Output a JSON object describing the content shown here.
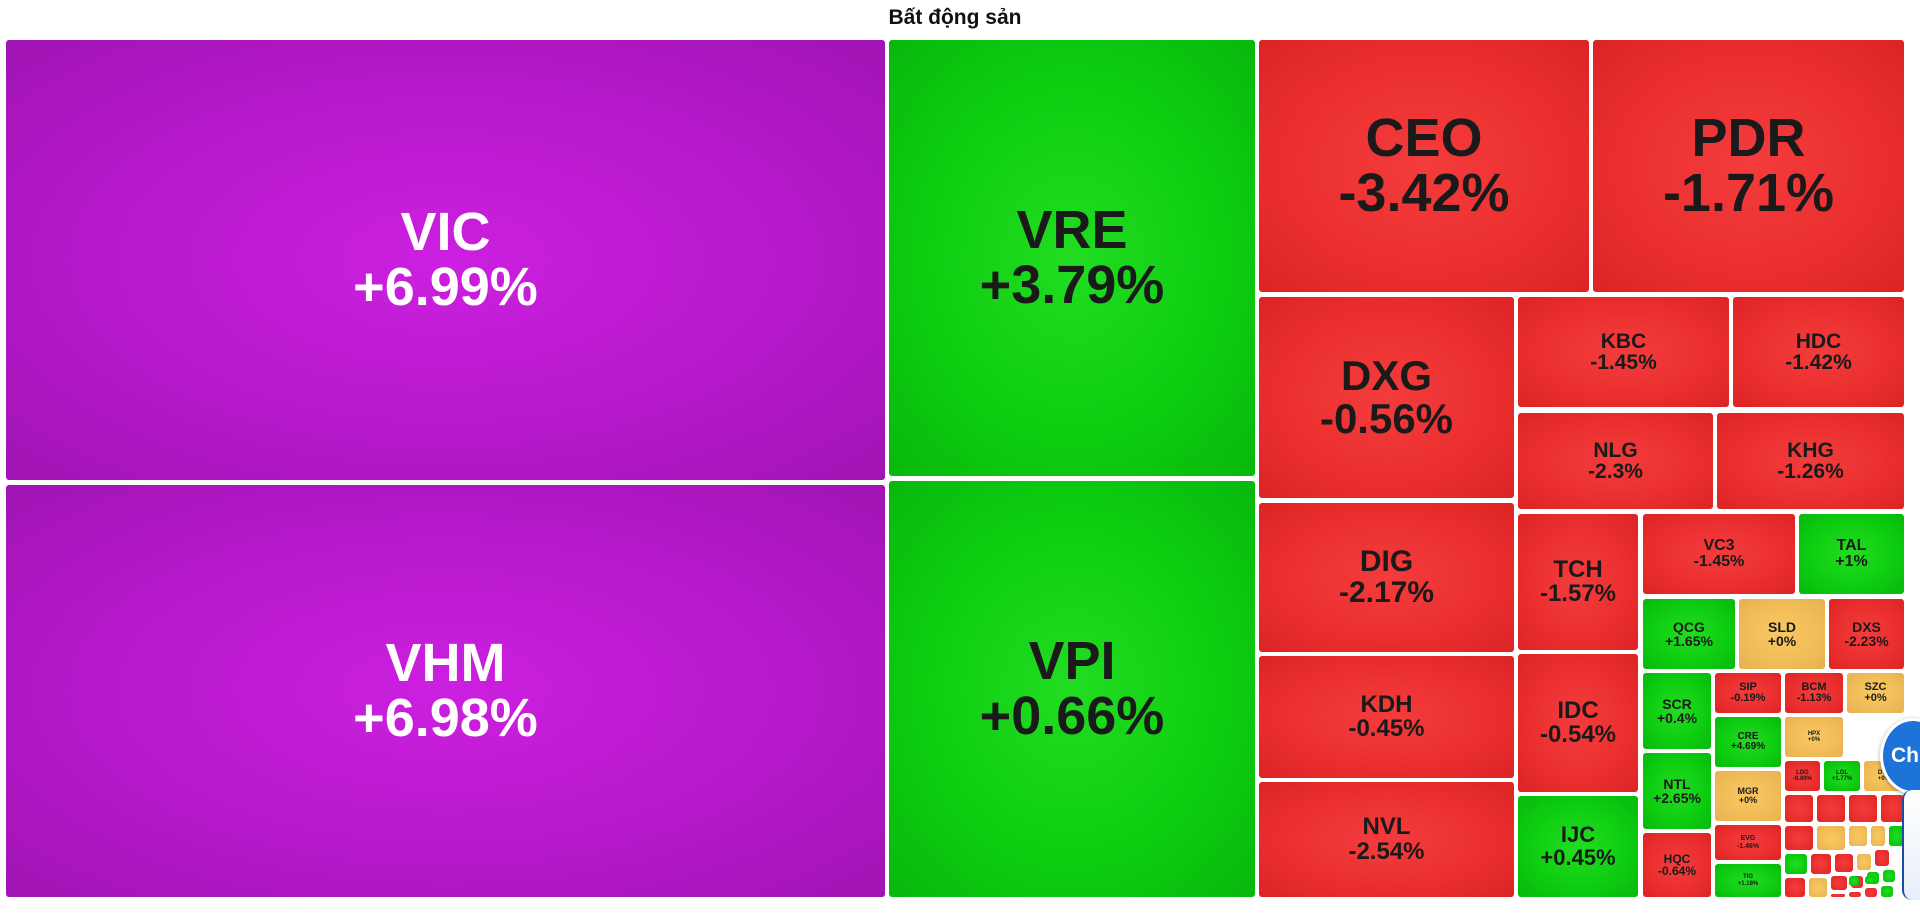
{
  "page": {
    "title": "Bất động sản"
  },
  "colors": {
    "up_strong": "#c81ee0",
    "up": "#0dcc10",
    "down": "#ea2e2e",
    "flat": "#f0bc58"
  },
  "tiles": [
    {
      "symbol": "VIC",
      "change": "+6.99%",
      "color": "purple"
    },
    {
      "symbol": "VHM",
      "change": "+6.98%",
      "color": "purple"
    },
    {
      "symbol": "VRE",
      "change": "+3.79%",
      "color": "green"
    },
    {
      "symbol": "VPI",
      "change": "+0.66%",
      "color": "green"
    },
    {
      "symbol": "CEO",
      "change": "-3.42%",
      "color": "red"
    },
    {
      "symbol": "PDR",
      "change": "-1.71%",
      "color": "red"
    },
    {
      "symbol": "DXG",
      "change": "-0.56%",
      "color": "red"
    },
    {
      "symbol": "KBC",
      "change": "-1.45%",
      "color": "red"
    },
    {
      "symbol": "HDC",
      "change": "-1.42%",
      "color": "red"
    },
    {
      "symbol": "NLG",
      "change": "-2.3%",
      "color": "red"
    },
    {
      "symbol": "KHG",
      "change": "-1.26%",
      "color": "red"
    },
    {
      "symbol": "DIG",
      "change": "-2.17%",
      "color": "red"
    },
    {
      "symbol": "TCH",
      "change": "-1.57%",
      "color": "red"
    },
    {
      "symbol": "VC3",
      "change": "-1.45%",
      "color": "red"
    },
    {
      "symbol": "TAL",
      "change": "+1%",
      "color": "green"
    },
    {
      "symbol": "QCG",
      "change": "+1.65%",
      "color": "green"
    },
    {
      "symbol": "SLD",
      "change": "+0%",
      "color": "yellow"
    },
    {
      "symbol": "DXS",
      "change": "-2.23%",
      "color": "red"
    },
    {
      "symbol": "KDH",
      "change": "-0.45%",
      "color": "red"
    },
    {
      "symbol": "IDC",
      "change": "-0.54%",
      "color": "red"
    },
    {
      "symbol": "SCR",
      "change": "+0.4%",
      "color": "green"
    },
    {
      "symbol": "SIP",
      "change": "-0.19%",
      "color": "red"
    },
    {
      "symbol": "BCM",
      "change": "-1.13%",
      "color": "red"
    },
    {
      "symbol": "SZC",
      "change": "+0%",
      "color": "yellow"
    },
    {
      "symbol": "CRE",
      "change": "+4.69%",
      "color": "green"
    },
    {
      "symbol": "HPX",
      "change": "+0%",
      "color": "yellow"
    },
    {
      "symbol": "NTL",
      "change": "+2.65%",
      "color": "green"
    },
    {
      "symbol": "MGR",
      "change": "+0%",
      "color": "yellow"
    },
    {
      "symbol": "LDG",
      "change": "-0.89%",
      "color": "red"
    },
    {
      "symbol": "LGL",
      "change": "+1.77%",
      "color": "green"
    },
    {
      "symbol": "DTD",
      "change": "+0%",
      "color": "yellow"
    },
    {
      "symbol": "NVL",
      "change": "-2.54%",
      "color": "red"
    },
    {
      "symbol": "IJC",
      "change": "+0.45%",
      "color": "green"
    },
    {
      "symbol": "HQC",
      "change": "-0.64%",
      "color": "red"
    },
    {
      "symbol": "EVG",
      "change": "-1.46%",
      "color": "red"
    },
    {
      "symbol": "TIG",
      "change": "+1.18%",
      "color": "green"
    },
    {
      "symbol": "",
      "change": "",
      "color": "red"
    },
    {
      "symbol": "",
      "change": "",
      "color": "red"
    },
    {
      "symbol": "",
      "change": "",
      "color": "red"
    },
    {
      "symbol": "",
      "change": "",
      "color": "red"
    },
    {
      "symbol": "",
      "change": "",
      "color": "red"
    },
    {
      "symbol": "",
      "change": "",
      "color": "yellow"
    },
    {
      "symbol": "",
      "change": "",
      "color": "yellow"
    },
    {
      "symbol": "",
      "change": "",
      "color": "yellow"
    },
    {
      "symbol": "",
      "change": "",
      "color": "green"
    },
    {
      "symbol": "",
      "change": "",
      "color": "green"
    },
    {
      "symbol": "",
      "change": "",
      "color": "red"
    },
    {
      "symbol": "",
      "change": "",
      "color": "red"
    },
    {
      "symbol": "",
      "change": "",
      "color": "yellow"
    },
    {
      "symbol": "",
      "change": "",
      "color": "red"
    },
    {
      "symbol": "",
      "change": "",
      "color": "red"
    },
    {
      "symbol": "",
      "change": "",
      "color": "yellow"
    },
    {
      "symbol": "",
      "change": "",
      "color": "red"
    },
    {
      "symbol": "",
      "change": "",
      "color": "red"
    },
    {
      "symbol": "",
      "change": "",
      "color": "green"
    },
    {
      "symbol": "",
      "change": "",
      "color": "green"
    },
    {
      "symbol": "",
      "change": "",
      "color": "red"
    },
    {
      "symbol": "",
      "change": "",
      "color": "red"
    },
    {
      "symbol": "",
      "change": "",
      "color": "red"
    },
    {
      "symbol": "",
      "change": "",
      "color": "green"
    },
    {
      "symbol": "",
      "change": "",
      "color": "green"
    },
    {
      "symbol": "",
      "change": "",
      "color": "green"
    }
  ],
  "chat_widget": {
    "label": "Chú"
  }
}
